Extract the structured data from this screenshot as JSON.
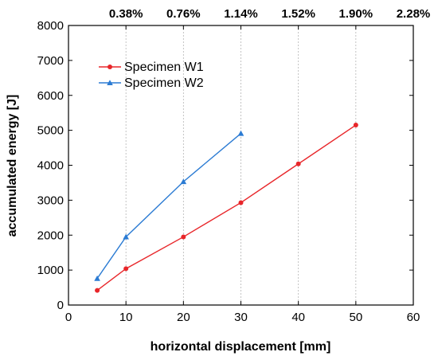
{
  "chart_data": {
    "type": "line",
    "xlabel": "horizontal displacement [mm]",
    "ylabel": "accumulated energy [J]",
    "xlim": [
      0,
      60
    ],
    "ylim": [
      0,
      8000
    ],
    "xticks": [
      0,
      10,
      20,
      30,
      40,
      50,
      60
    ],
    "yticks": [
      0,
      1000,
      2000,
      3000,
      4000,
      5000,
      6000,
      7000,
      8000
    ],
    "top_axis": {
      "ticks": [
        10,
        20,
        30,
        40,
        50,
        60
      ],
      "labels": [
        "0.38%",
        "0.76%",
        "1.14%",
        "1.52%",
        "1.90%",
        "2.28%"
      ]
    },
    "grid": "vertical dotted at x ticks",
    "legend": "top-left",
    "series": [
      {
        "name": "Specimen W1",
        "color": "#e8262a",
        "marker": "circle",
        "x": [
          5,
          10,
          20,
          30,
          40,
          50
        ],
        "y": [
          420,
          1040,
          1950,
          2930,
          4040,
          5150
        ]
      },
      {
        "name": "Specimen W2",
        "color": "#2b7bd3",
        "marker": "triangle",
        "x": [
          5,
          10,
          20,
          30
        ],
        "y": [
          760,
          1950,
          3530,
          4910
        ]
      }
    ]
  }
}
